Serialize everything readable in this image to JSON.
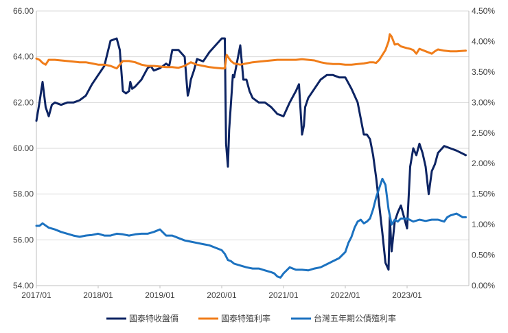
{
  "chart_data": {
    "type": "line",
    "title": "",
    "xlabel": "",
    "ylabel": "",
    "x_ticks": [
      "2017/01",
      "2018/01",
      "2019/01",
      "2020/01",
      "2021/01",
      "2022/01",
      "2023/01"
    ],
    "x_range": [
      "2017/01",
      "2023/12"
    ],
    "y_left": {
      "range": [
        54,
        66
      ],
      "ticks": [
        "54.00",
        "56.00",
        "58.00",
        "60.00",
        "62.00",
        "64.00",
        "66.00"
      ]
    },
    "y_right": {
      "range": [
        0,
        4.5
      ],
      "ticks": [
        "0.00%",
        "0.50%",
        "1.00%",
        "1.50%",
        "2.00%",
        "2.50%",
        "3.00%",
        "3.50%",
        "4.00%",
        "4.50%"
      ]
    },
    "grid": true,
    "legend_position": "bottom",
    "series": [
      {
        "name": "國泰特收盤價",
        "axis": "left",
        "color": "#0d2463",
        "x": [
          2017.0,
          2017.05,
          2017.1,
          2017.15,
          2017.2,
          2017.25,
          2017.3,
          2017.4,
          2017.5,
          2017.6,
          2017.7,
          2017.8,
          2017.9,
          2018.0,
          2018.1,
          2018.2,
          2018.3,
          2018.35,
          2018.4,
          2018.45,
          2018.5,
          2018.52,
          2018.55,
          2018.6,
          2018.7,
          2018.8,
          2018.85,
          2018.9,
          2019.0,
          2019.1,
          2019.15,
          2019.2,
          2019.3,
          2019.4,
          2019.45,
          2019.47,
          2019.5,
          2019.55,
          2019.6,
          2019.7,
          2019.75,
          2019.8,
          2019.9,
          2020.0,
          2020.05,
          2020.07,
          2020.1,
          2020.12,
          2020.15,
          2020.18,
          2020.2,
          2020.3,
          2020.35,
          2020.4,
          2020.45,
          2020.5,
          2020.55,
          2020.6,
          2020.7,
          2020.8,
          2020.9,
          2021.0,
          2021.1,
          2021.2,
          2021.25,
          2021.3,
          2021.33,
          2021.35,
          2021.4,
          2021.5,
          2021.6,
          2021.7,
          2021.8,
          2021.9,
          2022.0,
          2022.1,
          2022.2,
          2022.3,
          2022.35,
          2022.4,
          2022.45,
          2022.5,
          2022.55,
          2022.6,
          2022.65,
          2022.7,
          2022.72,
          2022.75,
          2022.8,
          2022.85,
          2022.9,
          2022.95,
          2023.0,
          2023.05,
          2023.1,
          2023.15,
          2023.2,
          2023.25,
          2023.3,
          2023.35,
          2023.4,
          2023.45,
          2023.5,
          2023.6,
          2023.7,
          2023.8,
          2023.95
        ],
        "values": [
          61.2,
          62.0,
          62.9,
          61.8,
          61.4,
          61.9,
          62.0,
          61.9,
          62.0,
          62.0,
          62.1,
          62.3,
          62.8,
          63.2,
          63.6,
          64.7,
          64.8,
          64.3,
          62.5,
          62.4,
          62.5,
          62.9,
          62.6,
          62.7,
          63.0,
          63.5,
          63.6,
          63.4,
          63.5,
          63.7,
          63.6,
          64.3,
          64.3,
          64.0,
          62.3,
          62.5,
          63.0,
          63.4,
          63.9,
          63.8,
          64.0,
          64.2,
          64.5,
          64.8,
          64.8,
          60.2,
          59.2,
          60.8,
          62.0,
          63.2,
          63.1,
          64.5,
          63.0,
          63.0,
          62.5,
          62.2,
          62.1,
          62.0,
          62.0,
          61.8,
          61.5,
          61.4,
          62.0,
          62.5,
          62.8,
          60.6,
          61.0,
          61.8,
          62.2,
          62.6,
          63.0,
          63.2,
          63.2,
          63.1,
          63.1,
          62.6,
          62.0,
          60.6,
          60.6,
          60.4,
          59.7,
          58.7,
          57.5,
          56.3,
          55.0,
          54.7,
          57.0,
          55.5,
          56.8,
          57.2,
          57.5,
          57.0,
          56.5,
          59.2,
          60.0,
          59.7,
          60.2,
          59.8,
          59.2,
          58.0,
          59.0,
          59.3,
          59.8,
          60.1,
          60.0,
          59.9,
          59.7
        ]
      },
      {
        "name": "國泰特殖利率",
        "axis": "right",
        "color": "#f07d1a",
        "x": [
          2017.0,
          2017.05,
          2017.1,
          2017.15,
          2017.2,
          2017.3,
          2017.4,
          2017.5,
          2017.6,
          2017.7,
          2017.8,
          2017.9,
          2018.0,
          2018.1,
          2018.2,
          2018.3,
          2018.4,
          2018.5,
          2018.6,
          2018.7,
          2018.8,
          2018.9,
          2019.0,
          2019.1,
          2019.2,
          2019.3,
          2019.4,
          2019.5,
          2019.6,
          2019.7,
          2019.8,
          2019.9,
          2020.0,
          2020.05,
          2020.08,
          2020.12,
          2020.15,
          2020.2,
          2020.3,
          2020.4,
          2020.5,
          2020.6,
          2020.7,
          2020.8,
          2020.9,
          2021.0,
          2021.1,
          2021.2,
          2021.3,
          2021.4,
          2021.5,
          2021.6,
          2021.7,
          2021.8,
          2021.9,
          2022.0,
          2022.1,
          2022.2,
          2022.3,
          2022.4,
          2022.45,
          2022.5,
          2022.55,
          2022.6,
          2022.65,
          2022.7,
          2022.72,
          2022.75,
          2022.8,
          2022.85,
          2022.9,
          2023.0,
          2023.05,
          2023.1,
          2023.15,
          2023.2,
          2023.3,
          2023.4,
          2023.45,
          2023.5,
          2023.6,
          2023.7,
          2023.8,
          2023.95
        ],
        "values": [
          3.72,
          3.7,
          3.65,
          3.62,
          3.7,
          3.7,
          3.69,
          3.68,
          3.67,
          3.66,
          3.66,
          3.64,
          3.62,
          3.62,
          3.6,
          3.56,
          3.68,
          3.68,
          3.66,
          3.62,
          3.6,
          3.6,
          3.59,
          3.58,
          3.58,
          3.57,
          3.6,
          3.66,
          3.62,
          3.6,
          3.58,
          3.57,
          3.56,
          3.56,
          3.78,
          3.72,
          3.68,
          3.64,
          3.62,
          3.64,
          3.66,
          3.67,
          3.68,
          3.69,
          3.7,
          3.7,
          3.7,
          3.7,
          3.71,
          3.7,
          3.69,
          3.66,
          3.64,
          3.63,
          3.63,
          3.62,
          3.62,
          3.63,
          3.64,
          3.66,
          3.66,
          3.65,
          3.7,
          3.78,
          3.86,
          4.0,
          4.12,
          4.08,
          3.95,
          3.96,
          3.92,
          3.89,
          3.88,
          3.86,
          3.8,
          3.88,
          3.84,
          3.8,
          3.84,
          3.87,
          3.85,
          3.84,
          3.84,
          3.85
        ]
      },
      {
        "name": "台灣五年期公債殖利率",
        "axis": "right",
        "color": "#1c72c0",
        "x": [
          2017.0,
          2017.05,
          2017.1,
          2017.2,
          2017.3,
          2017.4,
          2017.5,
          2017.6,
          2017.7,
          2017.8,
          2017.9,
          2018.0,
          2018.1,
          2018.2,
          2018.3,
          2018.4,
          2018.5,
          2018.6,
          2018.7,
          2018.8,
          2018.9,
          2019.0,
          2019.1,
          2019.2,
          2019.3,
          2019.4,
          2019.5,
          2019.6,
          2019.7,
          2019.8,
          2019.9,
          2020.0,
          2020.05,
          2020.1,
          2020.15,
          2020.2,
          2020.3,
          2020.4,
          2020.5,
          2020.6,
          2020.7,
          2020.8,
          2020.85,
          2020.9,
          2020.95,
          2021.0,
          2021.05,
          2021.1,
          2021.2,
          2021.3,
          2021.4,
          2021.5,
          2021.6,
          2021.7,
          2021.8,
          2021.9,
          2022.0,
          2022.05,
          2022.1,
          2022.15,
          2022.2,
          2022.25,
          2022.3,
          2022.35,
          2022.4,
          2022.45,
          2022.5,
          2022.55,
          2022.6,
          2022.65,
          2022.7,
          2022.75,
          2022.8,
          2022.85,
          2022.9,
          2023.0,
          2023.1,
          2023.2,
          2023.3,
          2023.4,
          2023.5,
          2023.6,
          2023.65,
          2023.7,
          2023.8,
          2023.9,
          2023.95
        ],
        "values": [
          0.98,
          0.98,
          1.02,
          0.95,
          0.92,
          0.88,
          0.85,
          0.82,
          0.8,
          0.82,
          0.83,
          0.85,
          0.82,
          0.82,
          0.85,
          0.84,
          0.82,
          0.84,
          0.85,
          0.85,
          0.88,
          0.92,
          0.82,
          0.82,
          0.78,
          0.74,
          0.72,
          0.7,
          0.68,
          0.66,
          0.62,
          0.58,
          0.52,
          0.42,
          0.4,
          0.36,
          0.33,
          0.3,
          0.28,
          0.28,
          0.25,
          0.22,
          0.2,
          0.15,
          0.13,
          0.2,
          0.25,
          0.3,
          0.26,
          0.26,
          0.25,
          0.28,
          0.3,
          0.35,
          0.4,
          0.45,
          0.55,
          0.7,
          0.8,
          0.95,
          1.05,
          1.08,
          1.02,
          1.05,
          1.1,
          1.25,
          1.45,
          1.6,
          1.75,
          1.65,
          1.25,
          1.0,
          1.08,
          1.05,
          1.1,
          1.1,
          1.05,
          1.08,
          1.06,
          1.08,
          1.08,
          1.05,
          1.12,
          1.15,
          1.18,
          1.12,
          1.12
        ]
      }
    ]
  }
}
